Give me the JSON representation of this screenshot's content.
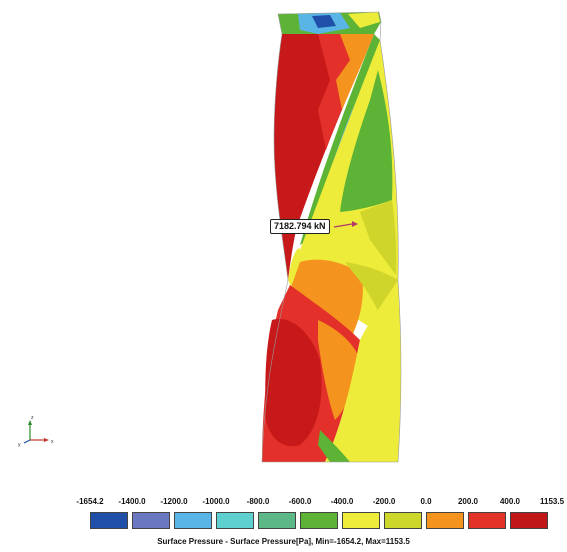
{
  "force_label": "7182.794 kN",
  "legend": {
    "labels": [
      "-1654.2",
      "-1400.0",
      "-1200.0",
      "-1000.0",
      "-800.0",
      "-600.0",
      "-400.0",
      "-200.0",
      "0.0",
      "200.0",
      "400.0",
      "1153.5"
    ],
    "colors": [
      "#1f4fa8",
      "#6a78c2",
      "#58b5e6",
      "#5dd0cf",
      "#5cb887",
      "#5db335",
      "#eeee3a",
      "#cdd62a",
      "#f4941e",
      "#e33228",
      "#c01818"
    ],
    "caption": "Surface Pressure  - Surface Pressure[Pa], Min=-1654.2, Max=1153.5"
  },
  "axis": {
    "x_label": "x",
    "y_label": "y",
    "z_label": "z"
  },
  "colors": {
    "deep_red": "#c8191a",
    "red": "#e3302a",
    "orange": "#f4941e",
    "yellow": "#eeec3a",
    "yellow_green": "#cfd52a",
    "green": "#5db335",
    "light_green": "#5cb887",
    "cyan": "#58b5e6",
    "blue": "#1f4fa8"
  }
}
